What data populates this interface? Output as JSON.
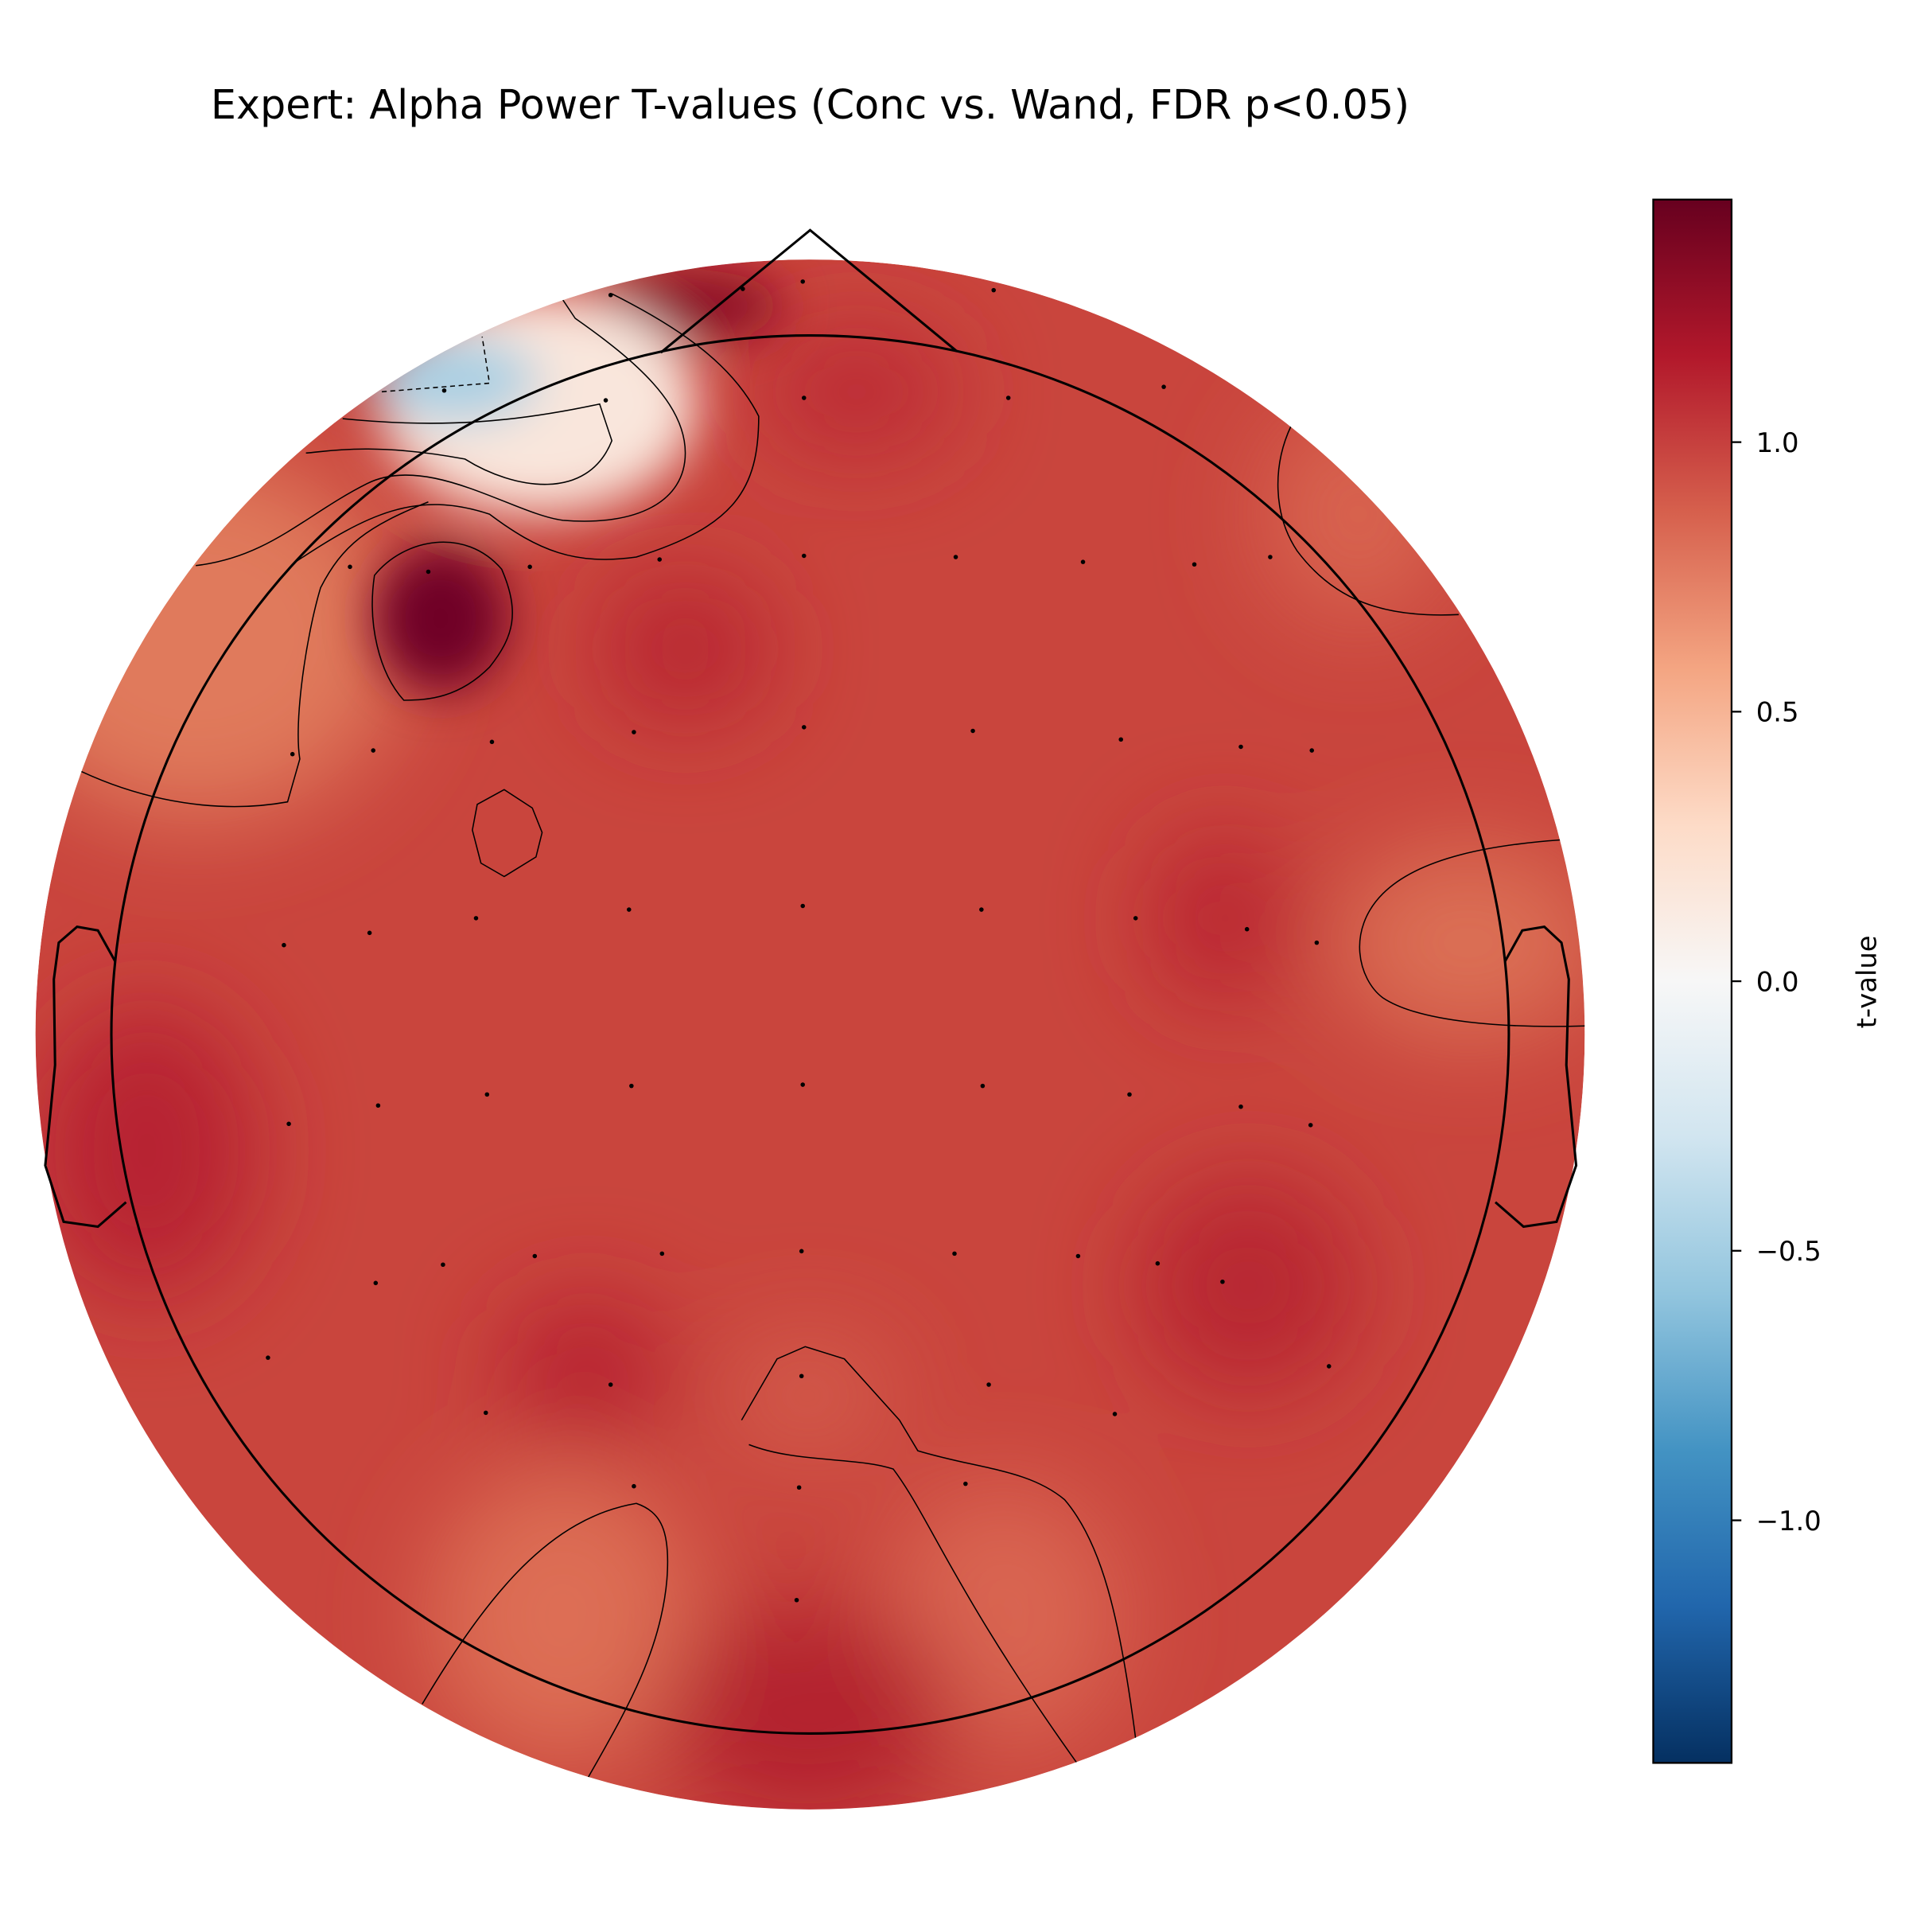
{
  "chart_data": {
    "type": "topomap",
    "title": "Expert: Alpha Power T-values (Conc vs. Wand, FDR p<0.05)",
    "colorbar_label": "t-value",
    "clim": [
      -1.45,
      1.45
    ],
    "cticks": [
      {
        "value": -1.0,
        "label": "−1.0"
      },
      {
        "value": -0.5,
        "label": "−0.5"
      },
      {
        "value": 0,
        "label": "0.0"
      },
      0.5,
      {
        "value": 1.0,
        "label": "1.0"
      }
    ],
    "colormap": [
      "#053061",
      "#2166ac",
      "#4393c3",
      "#92c5de",
      "#d1e5f0",
      "#f7f7f7",
      "#fddbc7",
      "#f4a582",
      "#d6604d",
      "#b2182b",
      "#67001f"
    ]
  }
}
